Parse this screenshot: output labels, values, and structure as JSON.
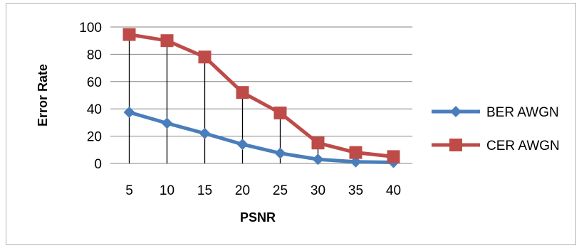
{
  "chart_data": {
    "type": "line",
    "title": "",
    "xlabel": "PSNR",
    "ylabel": "Error Rate",
    "categories": [
      "5",
      "10",
      "15",
      "20",
      "25",
      "30",
      "35",
      "40"
    ],
    "ylim": [
      0,
      100
    ],
    "yticks": [
      "0",
      "20",
      "40",
      "60",
      "80",
      "100"
    ],
    "grid": "horizontal",
    "legend_position": "right",
    "series": [
      {
        "name": "BER AWGN",
        "values": [
          37.5,
          29.5,
          22,
          14,
          7.5,
          3,
          1.2,
          0.8
        ],
        "color": "#4a7ebb",
        "marker": "diamond"
      },
      {
        "name": "CER AWGN",
        "values": [
          94.5,
          90,
          78,
          52,
          37,
          15,
          8,
          5
        ],
        "color": "#be4b48",
        "marker": "square"
      }
    ]
  }
}
